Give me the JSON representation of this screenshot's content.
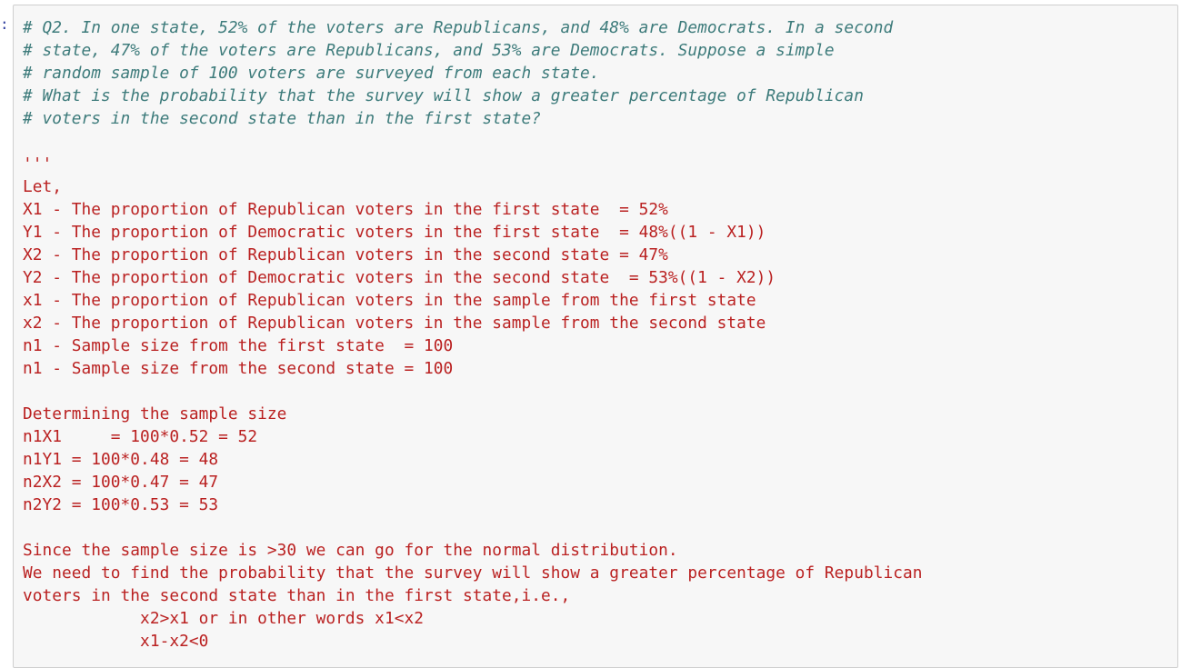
{
  "cell": {
    "prompt": ":",
    "lines": [
      {
        "kind": "comment",
        "text": "# Q2. In one state, 52% of the voters are Republicans, and 48% are Democrats. In a second"
      },
      {
        "kind": "comment",
        "text": "# state, 47% of the voters are Republicans, and 53% are Democrats. Suppose a simple"
      },
      {
        "kind": "comment",
        "text": "# random sample of 100 voters are surveyed from each state."
      },
      {
        "kind": "comment",
        "text": "# What is the probability that the survey will show a greater percentage of Republican"
      },
      {
        "kind": "comment",
        "text": "# voters in the second state than in the first state?"
      },
      {
        "kind": "str",
        "text": ""
      },
      {
        "kind": "str",
        "text": "'''"
      },
      {
        "kind": "str",
        "text": "Let,"
      },
      {
        "kind": "str",
        "text": "X1 - The proportion of Republican voters in the first state  = 52%"
      },
      {
        "kind": "str",
        "text": "Y1 - The proportion of Democratic voters in the first state  = 48%((1 - X1))"
      },
      {
        "kind": "str",
        "text": "X2 - The proportion of Republican voters in the second state = 47%"
      },
      {
        "kind": "str",
        "text": "Y2 - The proportion of Democratic voters in the second state  = 53%((1 - X2))"
      },
      {
        "kind": "str",
        "text": "x1 - The proportion of Republican voters in the sample from the first state"
      },
      {
        "kind": "str",
        "text": "x2 - The proportion of Republican voters in the sample from the second state"
      },
      {
        "kind": "str",
        "text": "n1 - Sample size from the first state  = 100"
      },
      {
        "kind": "str",
        "text": "n1 - Sample size from the second state = 100"
      },
      {
        "kind": "str",
        "text": ""
      },
      {
        "kind": "str",
        "text": "Determining the sample size"
      },
      {
        "kind": "str",
        "text": "n1X1     = 100*0.52 = 52"
      },
      {
        "kind": "str",
        "text": "n1Y1 = 100*0.48 = 48"
      },
      {
        "kind": "str",
        "text": "n2X2 = 100*0.47 = 47"
      },
      {
        "kind": "str",
        "text": "n2Y2 = 100*0.53 = 53"
      },
      {
        "kind": "str",
        "text": ""
      },
      {
        "kind": "str",
        "text": "Since the sample size is >30 we can go for the normal distribution."
      },
      {
        "kind": "str",
        "text": "We need to find the probability that the survey will show a greater percentage of Republican"
      },
      {
        "kind": "str",
        "text": "voters in the second state than in the first state,i.e.,"
      },
      {
        "kind": "str",
        "text": "            x2>x1 or in other words x1<x2"
      },
      {
        "kind": "str",
        "text": "            x1-x2<0"
      }
    ]
  }
}
